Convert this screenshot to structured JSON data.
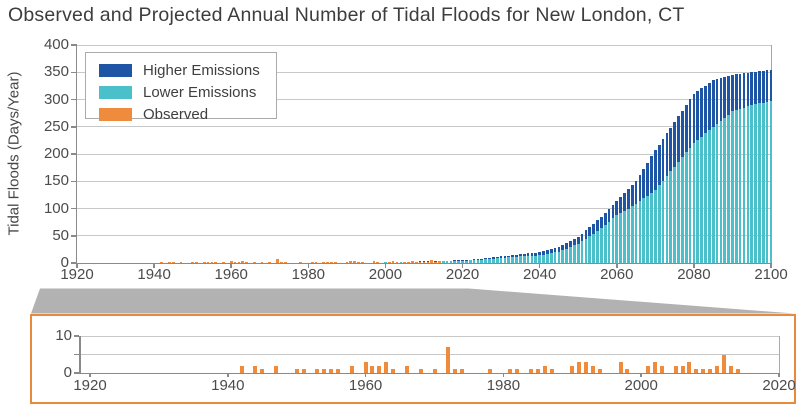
{
  "title": "Observed and Projected Annual Number of Tidal Floods for New London, CT",
  "colors": {
    "higher_emissions": "#1f55a5",
    "lower_emissions": "#4bbfca",
    "observed": "#ef8b3d",
    "grid": "#c8c8c8",
    "axis": "#8a8a8a",
    "connector": "#b2b2b2",
    "inset_border": "#e78a3b",
    "text": "#3d3d3d"
  },
  "legend": [
    {
      "label": "Higher Emissions",
      "color_key": "higher_emissions"
    },
    {
      "label": "Lower Emissions",
      "color_key": "lower_emissions"
    },
    {
      "label": "Observed",
      "color_key": "observed"
    }
  ],
  "chart_data": {
    "type": "bar",
    "title": "Observed and Projected Annual Number of Tidal Floods for New London, CT",
    "ylabel": "Tidal Floods (Days/Year)",
    "main": {
      "xlim": [
        1920,
        2100
      ],
      "ylim": [
        0,
        400
      ],
      "xticks": [
        1920,
        1940,
        1960,
        1980,
        2000,
        2020,
        2040,
        2060,
        2080,
        2100
      ],
      "yticks": [
        0,
        50,
        100,
        150,
        200,
        250,
        300,
        350,
        400
      ],
      "grid": "horizontal",
      "legend_position": "top-left",
      "projection_anchor_years": [
        2000,
        2005,
        2010,
        2015,
        2020,
        2025,
        2030,
        2035,
        2040,
        2045,
        2050,
        2055,
        2060,
        2065,
        2070,
        2075,
        2080,
        2085,
        2090,
        2095,
        2100
      ],
      "series": [
        {
          "name": "Higher Emissions",
          "values": [
            1,
            2,
            3,
            4,
            5,
            8,
            12,
            16,
            20,
            30,
            48,
            78,
            113,
            150,
            207,
            259,
            311,
            335,
            345,
            350,
            355
          ]
        },
        {
          "name": "Lower Emissions",
          "values": [
            1,
            1,
            2,
            3,
            4,
            6,
            9,
            12,
            14,
            21,
            35,
            58,
            88,
            108,
            134,
            177,
            220,
            250,
            278,
            290,
            297
          ]
        }
      ]
    },
    "observed": {
      "name": "Observed",
      "years": [
        1942,
        1944,
        1945,
        1947,
        1950,
        1951,
        1953,
        1954,
        1955,
        1956,
        1958,
        1960,
        1961,
        1962,
        1963,
        1964,
        1966,
        1968,
        1970,
        1972,
        1973,
        1974,
        1978,
        1981,
        1982,
        1984,
        1985,
        1986,
        1987,
        1990,
        1991,
        1992,
        1993,
        1994,
        1997,
        1998,
        2001,
        2002,
        2003,
        2005,
        2006,
        2007,
        2008,
        2009,
        2010,
        2011,
        2012,
        2013,
        2014
      ],
      "values": [
        2,
        2,
        1,
        2,
        1,
        1,
        1,
        1,
        1,
        1,
        2,
        3,
        2,
        2,
        3,
        1,
        2,
        1,
        1,
        7,
        1,
        1,
        1,
        1,
        1,
        1,
        1,
        2,
        1,
        2,
        3,
        3,
        2,
        1,
        3,
        1,
        2,
        3,
        2,
        2,
        2,
        3,
        1,
        1,
        1,
        2,
        5,
        2,
        1
      ]
    },
    "inset": {
      "description": "zoomed view of observed tidal flood days 1920-2020",
      "xlim": [
        1920,
        2020
      ],
      "ylim": [
        0,
        10
      ],
      "xticks": [
        1920,
        1940,
        1960,
        1980,
        2000,
        2020
      ],
      "ytick_labels": [
        0,
        10
      ],
      "yticks": [
        0,
        5,
        10
      ],
      "grid": "horizontal"
    }
  }
}
